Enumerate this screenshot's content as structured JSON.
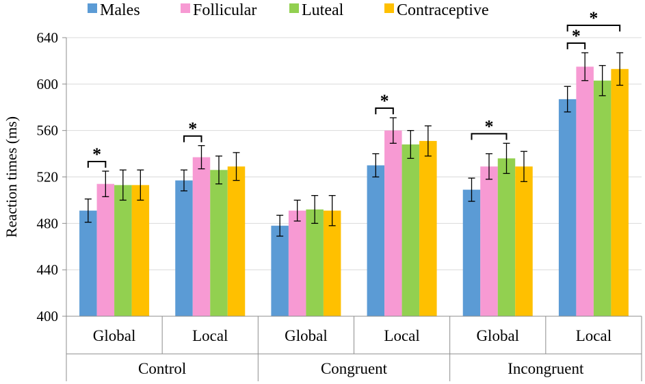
{
  "chart_data": {
    "type": "bar",
    "title": "",
    "xlabel": "",
    "ylabel": "Reaction times (ms)",
    "ylim": [
      400,
      640
    ],
    "yticks": [
      400,
      440,
      480,
      520,
      560,
      600,
      640
    ],
    "grid": true,
    "legend_position": "top",
    "conditions": [
      {
        "name": "Control",
        "groups": [
          "Global",
          "Local"
        ]
      },
      {
        "name": "Congruent",
        "groups": [
          "Global",
          "Local"
        ]
      },
      {
        "name": "Incongruent",
        "groups": [
          "Global",
          "Local"
        ]
      }
    ],
    "series": [
      {
        "name": "Males",
        "color": "#5b9bd5",
        "values": [
          491,
          517,
          478,
          530,
          509,
          587
        ],
        "errors": [
          10,
          9,
          9,
          10,
          10,
          11
        ]
      },
      {
        "name": "Follicular",
        "color": "#f79ad3",
        "values": [
          514,
          537,
          491,
          560,
          529,
          615
        ],
        "errors": [
          11,
          10,
          9,
          11,
          11,
          12
        ]
      },
      {
        "name": "Luteal",
        "color": "#92d050",
        "values": [
          513,
          526,
          492,
          548,
          536,
          603
        ],
        "errors": [
          13,
          12,
          12,
          12,
          13,
          13
        ]
      },
      {
        "name": "Contraceptive",
        "color": "#ffc000",
        "values": [
          513,
          529,
          491,
          551,
          529,
          613
        ],
        "errors": [
          13,
          12,
          13,
          13,
          13,
          14
        ]
      }
    ],
    "significance": [
      {
        "group": 0,
        "from_series": 0,
        "to_series": 1,
        "label": "*"
      },
      {
        "group": 1,
        "from_series": 0,
        "to_series": 1,
        "label": "*"
      },
      {
        "group": 3,
        "from_series": 0,
        "to_series": 1,
        "label": "*"
      },
      {
        "group": 4,
        "from_series": 0,
        "to_series": 2,
        "label": "*"
      },
      {
        "group": 5,
        "from_series": 0,
        "to_series": 1,
        "label": "*"
      },
      {
        "group": 5,
        "from_series": 0,
        "to_series": 3,
        "label": "*"
      }
    ]
  }
}
